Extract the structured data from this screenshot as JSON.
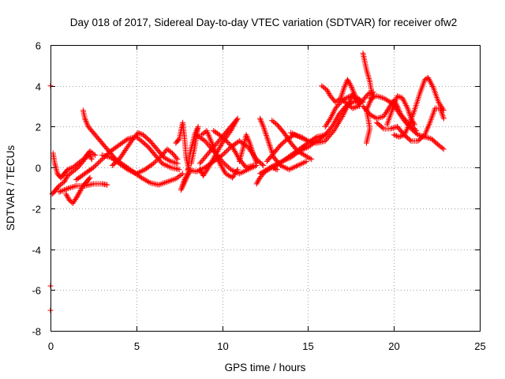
{
  "chart_data": {
    "type": "scatter",
    "title": "Day 018 of 2017, Sidereal Day-to-day VTEC variation (SDTVAR) for receiver ofw2",
    "xlabel": "GPS time / hours",
    "ylabel": "SDTVAR / TECUs",
    "xlim": [
      0,
      25
    ],
    "ylim": [
      -8,
      6
    ],
    "xticks": [
      "0",
      "5",
      "10",
      "15",
      "20",
      "25"
    ],
    "yticks": [
      "-8",
      "-6",
      "-4",
      "-2",
      "0",
      "2",
      "4",
      "6"
    ],
    "grid": true,
    "marker": "+",
    "color": "#ff0000",
    "series": [
      {
        "points": [
          [
            0.0,
            4.0
          ],
          [
            0.0,
            -5.8
          ],
          [
            0.0,
            -7.0
          ]
        ]
      },
      {
        "points": [
          [
            0.15,
            0.7
          ],
          [
            0.25,
            0.2
          ],
          [
            0.4,
            -0.3
          ],
          [
            0.6,
            -0.5
          ],
          [
            0.8,
            -0.3
          ],
          [
            1.0,
            -0.1
          ],
          [
            1.3,
            0.0
          ],
          [
            1.6,
            0.2
          ],
          [
            1.9,
            0.4
          ],
          [
            2.3,
            0.6
          ],
          [
            2.4,
            0.4
          ]
        ]
      },
      {
        "points": [
          [
            0.1,
            -1.3
          ],
          [
            0.3,
            -1.1
          ],
          [
            0.5,
            -0.9
          ],
          [
            0.8,
            -0.7
          ],
          [
            1.0,
            -0.4
          ],
          [
            1.3,
            -0.2
          ],
          [
            1.6,
            0.0
          ],
          [
            1.9,
            0.3
          ],
          [
            2.1,
            0.6
          ],
          [
            2.3,
            0.8
          ],
          [
            2.6,
            0.6
          ]
        ]
      },
      {
        "points": [
          [
            0.5,
            -1.2
          ],
          [
            0.8,
            -1.1
          ],
          [
            1.1,
            -1.0
          ],
          [
            1.5,
            -0.9
          ],
          [
            2.0,
            -0.9
          ],
          [
            2.5,
            -0.8
          ],
          [
            3.0,
            -0.8
          ],
          [
            3.3,
            -0.85
          ]
        ]
      },
      {
        "points": [
          [
            0.9,
            -1.3
          ],
          [
            1.1,
            -1.6
          ],
          [
            1.3,
            -1.75
          ],
          [
            1.5,
            -1.5
          ],
          [
            1.7,
            -1.2
          ],
          [
            1.9,
            -0.9
          ],
          [
            2.1,
            -0.7
          ],
          [
            2.3,
            -0.5
          ]
        ]
      },
      {
        "points": [
          [
            1.9,
            2.8
          ],
          [
            2.0,
            2.4
          ],
          [
            2.2,
            2.0
          ],
          [
            2.6,
            1.6
          ],
          [
            3.0,
            1.2
          ],
          [
            3.4,
            0.8
          ],
          [
            3.8,
            0.4
          ],
          [
            4.3,
            0.1
          ],
          [
            4.8,
            -0.2
          ],
          [
            5.3,
            -0.5
          ],
          [
            5.8,
            -0.75
          ],
          [
            6.3,
            -0.85
          ],
          [
            6.8,
            -0.7
          ],
          [
            7.3,
            -0.55
          ],
          [
            7.7,
            -0.3
          ]
        ]
      },
      {
        "points": [
          [
            1.5,
            -0.6
          ],
          [
            2.0,
            -0.3
          ],
          [
            2.5,
            0.0
          ],
          [
            3.0,
            0.4
          ],
          [
            3.5,
            0.8
          ],
          [
            4.0,
            1.1
          ],
          [
            4.5,
            1.4
          ],
          [
            5.0,
            1.5
          ],
          [
            5.3,
            1.3
          ],
          [
            5.7,
            1.0
          ],
          [
            6.1,
            0.6
          ],
          [
            6.5,
            0.2
          ],
          [
            7.0,
            0.0
          ],
          [
            7.5,
            -0.1
          ]
        ]
      },
      {
        "points": [
          [
            3.6,
            0.1
          ],
          [
            4.0,
            0.4
          ],
          [
            4.4,
            0.9
          ],
          [
            4.8,
            1.4
          ],
          [
            5.1,
            1.7
          ],
          [
            5.4,
            1.6
          ],
          [
            5.8,
            1.3
          ],
          [
            6.2,
            0.9
          ],
          [
            6.6,
            0.5
          ],
          [
            7.0,
            0.3
          ],
          [
            7.4,
            0.2
          ]
        ]
      },
      {
        "points": [
          [
            3.0,
            0.6
          ],
          [
            3.5,
            0.5
          ],
          [
            4.0,
            0.2
          ],
          [
            4.5,
            -0.1
          ],
          [
            5.0,
            -0.3
          ],
          [
            5.5,
            -0.1
          ],
          [
            6.0,
            0.2
          ],
          [
            6.5,
            0.6
          ],
          [
            6.8,
            0.9
          ],
          [
            7.1,
            0.7
          ],
          [
            7.4,
            0.4
          ]
        ]
      },
      {
        "points": [
          [
            7.3,
            1.2
          ],
          [
            7.5,
            1.4
          ],
          [
            7.7,
            2.2
          ],
          [
            7.8,
            1.5
          ],
          [
            7.9,
            0.5
          ],
          [
            8.1,
            -0.2
          ],
          [
            7.6,
            -1.1
          ],
          [
            7.8,
            -0.6
          ],
          [
            8.0,
            -0.3
          ],
          [
            8.1,
            0.6
          ],
          [
            8.4,
            1.6
          ],
          [
            8.6,
            2.0
          ],
          [
            8.4,
            1.0
          ],
          [
            8.2,
            0.2
          ]
        ]
      },
      {
        "points": [
          [
            8.0,
            -0.1
          ],
          [
            8.5,
            -0.2
          ],
          [
            9.0,
            0.0
          ],
          [
            9.5,
            0.3
          ],
          [
            10.0,
            0.6
          ],
          [
            10.5,
            1.0
          ],
          [
            11.0,
            1.3
          ],
          [
            11.5,
            1.0
          ],
          [
            12.0,
            0.4
          ],
          [
            12.4,
            0.1
          ]
        ]
      },
      {
        "points": [
          [
            8.5,
            1.6
          ],
          [
            9.0,
            1.3
          ],
          [
            9.5,
            0.8
          ],
          [
            10.0,
            0.3
          ],
          [
            10.5,
            -0.1
          ],
          [
            11.0,
            -0.3
          ],
          [
            11.5,
            -0.1
          ],
          [
            12.0,
            0.1
          ]
        ]
      },
      {
        "points": [
          [
            8.7,
            0.2
          ],
          [
            9.2,
            0.7
          ],
          [
            9.7,
            1.2
          ],
          [
            10.2,
            1.7
          ],
          [
            10.6,
            2.1
          ],
          [
            10.9,
            2.4
          ],
          [
            10.5,
            1.8
          ],
          [
            10.0,
            1.2
          ],
          [
            9.6,
            0.6
          ],
          [
            9.2,
            0.0
          ],
          [
            8.9,
            -0.4
          ],
          [
            8.7,
            -0.1
          ]
        ]
      },
      {
        "points": [
          [
            8.8,
            1.6
          ],
          [
            9.1,
            1.8
          ],
          [
            9.5,
            1.0
          ],
          [
            9.8,
            0.3
          ],
          [
            10.2,
            -0.3
          ],
          [
            10.6,
            -0.5
          ],
          [
            10.9,
            -0.1
          ]
        ]
      },
      {
        "points": [
          [
            9.5,
            1.8
          ],
          [
            10.0,
            1.5
          ],
          [
            10.6,
            1.0
          ],
          [
            11.0,
            0.4
          ],
          [
            11.4,
            0.0
          ],
          [
            11.8,
            0.1
          ]
        ]
      },
      {
        "points": [
          [
            11.0,
            0.3
          ],
          [
            11.2,
            0.9
          ],
          [
            11.4,
            1.6
          ],
          [
            11.6,
            1.2
          ],
          [
            11.8,
            0.7
          ],
          [
            12.0,
            0.2
          ]
        ]
      },
      {
        "points": [
          [
            12.2,
            2.4
          ],
          [
            12.4,
            2.0
          ],
          [
            12.6,
            1.5
          ],
          [
            12.8,
            1.0
          ],
          [
            13.0,
            0.5
          ],
          [
            13.4,
            0.1
          ],
          [
            13.9,
            -0.1
          ],
          [
            14.4,
            0.1
          ],
          [
            14.9,
            0.3
          ]
        ]
      },
      {
        "points": [
          [
            12.6,
            0.3
          ],
          [
            13.0,
            0.7
          ],
          [
            13.4,
            1.1
          ],
          [
            13.8,
            1.4
          ],
          [
            14.2,
            1.6
          ],
          [
            14.6,
            1.5
          ],
          [
            15.0,
            1.3
          ]
        ]
      },
      {
        "points": [
          [
            12.2,
            -0.3
          ],
          [
            12.6,
            -0.1
          ],
          [
            13.0,
            0.1
          ],
          [
            13.5,
            0.3
          ],
          [
            14.0,
            0.6
          ],
          [
            14.5,
            0.9
          ],
          [
            15.0,
            1.2
          ],
          [
            15.5,
            1.5
          ],
          [
            16.0,
            1.6
          ]
        ]
      },
      {
        "points": [
          [
            12.9,
            2.3
          ],
          [
            13.2,
            2.1
          ],
          [
            13.6,
            1.7
          ],
          [
            14.0,
            1.2
          ],
          [
            14.4,
            0.8
          ],
          [
            14.8,
            0.6
          ],
          [
            15.2,
            0.4
          ]
        ]
      },
      {
        "points": [
          [
            12.0,
            -0.8
          ],
          [
            12.2,
            -0.5
          ],
          [
            12.5,
            -0.2
          ],
          [
            12.9,
            0.0
          ],
          [
            13.2,
            -0.1
          ]
        ]
      },
      {
        "points": [
          [
            13.0,
            0.0
          ],
          [
            13.5,
            0.3
          ],
          [
            14.0,
            0.5
          ],
          [
            14.5,
            0.8
          ],
          [
            15.0,
            1.0
          ],
          [
            15.5,
            1.3
          ],
          [
            16.0,
            1.6
          ],
          [
            16.4,
            2.0
          ],
          [
            16.8,
            2.6
          ],
          [
            17.2,
            3.0
          ],
          [
            17.6,
            3.2
          ],
          [
            18.0,
            3.3
          ]
        ]
      },
      {
        "points": [
          [
            14.0,
            1.7
          ],
          [
            14.5,
            1.5
          ],
          [
            15.0,
            1.3
          ],
          [
            15.5,
            1.2
          ],
          [
            16.0,
            1.3
          ],
          [
            16.5,
            1.8
          ],
          [
            17.0,
            2.5
          ],
          [
            17.3,
            3.0
          ],
          [
            17.6,
            3.6
          ],
          [
            17.9,
            3.2
          ]
        ]
      },
      {
        "points": [
          [
            15.8,
            4.0
          ],
          [
            16.1,
            3.8
          ],
          [
            16.3,
            3.5
          ],
          [
            16.6,
            3.2
          ],
          [
            16.9,
            3.4
          ],
          [
            17.1,
            3.9
          ],
          [
            17.3,
            4.3
          ],
          [
            17.5,
            4.0
          ],
          [
            17.7,
            3.6
          ],
          [
            18.0,
            3.0
          ]
        ]
      },
      {
        "points": [
          [
            16.0,
            2.0
          ],
          [
            16.3,
            2.4
          ],
          [
            16.6,
            2.9
          ],
          [
            16.9,
            3.2
          ],
          [
            17.2,
            3.4
          ],
          [
            17.5,
            3.5
          ],
          [
            17.9,
            3.4
          ],
          [
            18.2,
            3.2
          ]
        ]
      },
      {
        "points": [
          [
            18.2,
            5.6
          ],
          [
            18.3,
            5.2
          ],
          [
            18.4,
            4.8
          ],
          [
            18.5,
            4.5
          ],
          [
            18.6,
            4.2
          ],
          [
            18.7,
            3.7
          ],
          [
            18.8,
            3.5
          ],
          [
            18.6,
            3.2
          ],
          [
            18.4,
            2.8
          ],
          [
            18.5,
            2.4
          ],
          [
            18.6,
            1.9
          ],
          [
            18.4,
            1.2
          ]
        ]
      },
      {
        "points": [
          [
            18.6,
            3.4
          ],
          [
            19.0,
            3.5
          ],
          [
            19.4,
            3.4
          ],
          [
            19.8,
            3.2
          ],
          [
            20.2,
            2.8
          ],
          [
            20.6,
            2.3
          ],
          [
            21.0,
            1.9
          ],
          [
            21.4,
            1.6
          ],
          [
            21.8,
            1.5
          ],
          [
            22.2,
            1.4
          ],
          [
            22.6,
            1.1
          ],
          [
            22.9,
            0.9
          ]
        ]
      },
      {
        "points": [
          [
            18.2,
            3.0
          ],
          [
            18.6,
            2.6
          ],
          [
            19.0,
            2.4
          ],
          [
            19.4,
            2.5
          ],
          [
            19.7,
            2.9
          ],
          [
            20.0,
            3.3
          ],
          [
            20.2,
            3.0
          ],
          [
            20.4,
            2.6
          ],
          [
            20.7,
            2.3
          ],
          [
            21.0,
            2.1
          ],
          [
            21.3,
            1.8
          ]
        ]
      },
      {
        "points": [
          [
            19.0,
            2.2
          ],
          [
            19.4,
            1.9
          ],
          [
            19.8,
            1.9
          ],
          [
            20.2,
            2.0
          ],
          [
            20.6,
            1.6
          ],
          [
            21.0,
            1.3
          ],
          [
            21.4,
            1.3
          ],
          [
            21.8,
            1.6
          ],
          [
            22.1,
            2.2
          ],
          [
            22.4,
            2.9
          ],
          [
            22.7,
            2.9
          ],
          [
            22.9,
            2.4
          ]
        ]
      },
      {
        "points": [
          [
            19.6,
            2.1
          ],
          [
            19.9,
            2.8
          ],
          [
            20.2,
            3.5
          ],
          [
            20.5,
            3.4
          ],
          [
            20.8,
            2.9
          ],
          [
            21.0,
            2.4
          ],
          [
            21.2,
            2.1
          ]
        ]
      },
      {
        "points": [
          [
            20.0,
            1.6
          ],
          [
            20.3,
            1.5
          ],
          [
            20.6,
            1.6
          ],
          [
            20.9,
            2.1
          ],
          [
            21.2,
            2.8
          ],
          [
            21.5,
            3.6
          ],
          [
            21.8,
            4.3
          ],
          [
            22.0,
            4.4
          ],
          [
            22.3,
            3.9
          ],
          [
            22.6,
            3.2
          ],
          [
            22.9,
            2.8
          ]
        ]
      },
      {
        "points": [
          [
            17.0,
            3.3
          ],
          [
            17.3,
            3.1
          ],
          [
            17.6,
            2.9
          ],
          [
            17.9,
            3.0
          ],
          [
            18.2,
            3.3
          ],
          [
            18.5,
            3.6
          ],
          [
            18.8,
            3.7
          ]
        ]
      }
    ]
  }
}
